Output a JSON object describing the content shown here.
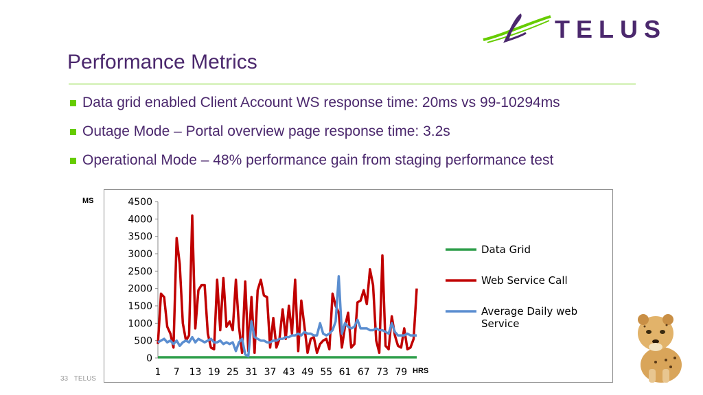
{
  "logo": {
    "text": "TELUS"
  },
  "slide": {
    "title": "Performance Metrics",
    "bullets": [
      "Data grid enabled Client Account WS response time: 20ms vs 99-10294ms",
      "Outage Mode – Portal overview page response time: 3.2s",
      "Operational Mode – 48% performance gain from staging performance test"
    ],
    "page_number": "33",
    "footer_brand": "TELUS"
  },
  "chart_data": {
    "type": "line",
    "ylabel": "MS",
    "xlabel": "HRS",
    "ylim": [
      0,
      4500
    ],
    "yticks": [
      0,
      500,
      1000,
      1500,
      2000,
      2500,
      3000,
      3500,
      4000,
      4500
    ],
    "xticks": [
      1,
      7,
      13,
      19,
      25,
      31,
      37,
      43,
      49,
      55,
      61,
      67,
      73,
      79
    ],
    "x_range": [
      1,
      84
    ],
    "legend_position": "right",
    "series": [
      {
        "name": "Data Grid",
        "color": "#2e9e4a",
        "values": [
          20,
          20,
          20,
          20,
          20,
          20,
          20,
          20,
          20,
          20,
          20,
          20,
          20,
          20,
          20,
          20,
          20,
          20,
          20,
          20,
          20,
          20,
          20,
          20,
          20,
          20,
          20,
          20,
          20,
          20,
          20,
          20,
          20,
          20,
          20,
          20,
          20,
          20,
          20,
          20,
          20,
          20,
          20,
          20,
          20,
          20,
          20,
          20,
          20,
          20,
          20,
          20,
          20,
          20,
          20,
          20,
          20,
          20,
          20,
          20,
          20,
          20,
          20,
          20,
          20,
          20,
          20,
          20,
          20,
          20,
          20,
          20,
          20,
          20,
          20,
          20,
          20,
          20,
          20,
          20,
          20,
          20,
          20,
          20
        ]
      },
      {
        "name": "Web Service Call",
        "color": "#c00000",
        "values": [
          400,
          1850,
          1750,
          900,
          700,
          300,
          3450,
          2700,
          1000,
          500,
          650,
          4100,
          850,
          1950,
          2100,
          2100,
          700,
          300,
          250,
          2250,
          800,
          2300,
          900,
          1050,
          800,
          2250,
          900,
          150,
          2200,
          200,
          1750,
          150,
          1950,
          2250,
          1800,
          1750,
          300,
          1150,
          300,
          550,
          1400,
          550,
          1500,
          700,
          2250,
          200,
          1650,
          900,
          150,
          550,
          600,
          150,
          400,
          500,
          550,
          250,
          1850,
          1500,
          1300,
          300,
          900,
          1300,
          300,
          400,
          1600,
          1650,
          1950,
          1550,
          2550,
          2100,
          500,
          150,
          2950,
          350,
          250,
          1200,
          650,
          350,
          300,
          850,
          250,
          300,
          550,
          2000
        ]
      },
      {
        "name": "Average Daily web Service",
        "color": "#5b8ed0",
        "values": [
          450,
          500,
          550,
          450,
          500,
          400,
          500,
          350,
          450,
          500,
          450,
          600,
          450,
          550,
          500,
          450,
          500,
          550,
          450,
          450,
          500,
          400,
          450,
          400,
          450,
          200,
          450,
          550,
          100,
          50,
          1050,
          600,
          550,
          500,
          500,
          450,
          450,
          500,
          500,
          550,
          550,
          600,
          600,
          650,
          650,
          700,
          650,
          750,
          700,
          700,
          650,
          650,
          1000,
          700,
          650,
          700,
          800,
          1050,
          2350,
          700,
          1000,
          900,
          850,
          900,
          1100,
          850,
          850,
          850,
          800,
          800,
          850,
          800,
          800,
          750,
          700,
          1000,
          750,
          650,
          650,
          650,
          700,
          650,
          650,
          650
        ]
      }
    ]
  }
}
